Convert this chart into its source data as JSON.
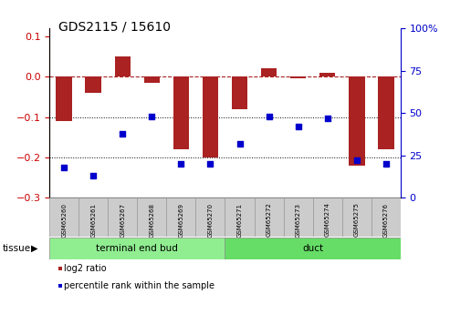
{
  "title": "GDS2115 / 15610",
  "samples": [
    "GSM65260",
    "GSM65261",
    "GSM65267",
    "GSM65268",
    "GSM65269",
    "GSM65270",
    "GSM65271",
    "GSM65272",
    "GSM65273",
    "GSM65274",
    "GSM65275",
    "GSM65276"
  ],
  "log2_ratio": [
    -0.11,
    -0.04,
    0.05,
    -0.015,
    -0.18,
    -0.2,
    -0.08,
    0.02,
    -0.005,
    0.01,
    -0.22,
    -0.18
  ],
  "percentile_rank": [
    18,
    13,
    38,
    48,
    20,
    20,
    32,
    48,
    42,
    47,
    22,
    20
  ],
  "groups": [
    {
      "label": "terminal end bud",
      "start": 0,
      "end": 6,
      "color": "#90EE90"
    },
    {
      "label": "duct",
      "start": 6,
      "end": 12,
      "color": "#66DD66"
    }
  ],
  "bar_color": "#AA2222",
  "scatter_color": "#0000CC",
  "bar_width": 0.55,
  "ylim_left": [
    -0.3,
    0.12
  ],
  "ylim_right": [
    0,
    100
  ],
  "yticks_left": [
    -0.3,
    -0.2,
    -0.1,
    0.0,
    0.1
  ],
  "yticks_right": [
    0,
    25,
    50,
    75,
    100
  ],
  "hline_y": 0.0,
  "dotted_lines": [
    -0.1,
    -0.2
  ],
  "left_axis_color": "#CC0000",
  "right_axis_color": "#0000CC",
  "legend_items": [
    {
      "label": "log2 ratio",
      "color": "#AA2222"
    },
    {
      "label": "percentile rank within the sample",
      "color": "#0000CC"
    }
  ]
}
